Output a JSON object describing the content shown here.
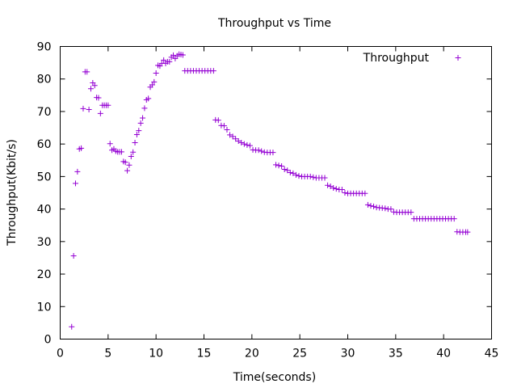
{
  "chart_data": {
    "type": "scatter",
    "title": "Throughput vs Time",
    "xlabel": "Time(seconds)",
    "ylabel": "Throughput(Kbit/s)",
    "xlim": [
      0,
      45
    ],
    "ylim": [
      0,
      90
    ],
    "xticks": [
      0,
      5,
      10,
      15,
      20,
      25,
      30,
      35,
      40,
      45
    ],
    "yticks": [
      0,
      10,
      20,
      30,
      40,
      50,
      60,
      70,
      80,
      90
    ],
    "grid": false,
    "legend_position": "top-right",
    "marker": "plus",
    "series": [
      {
        "name": "Throughput",
        "color": "#9400d3",
        "points": [
          [
            1.2,
            3.8
          ],
          [
            1.4,
            25.6
          ],
          [
            1.6,
            47.9
          ],
          [
            1.8,
            51.5
          ],
          [
            2.0,
            58.5
          ],
          [
            2.2,
            58.7
          ],
          [
            2.4,
            70.9
          ],
          [
            2.6,
            82.2
          ],
          [
            2.8,
            82.2
          ],
          [
            3.0,
            70.6
          ],
          [
            3.2,
            77.0
          ],
          [
            3.4,
            78.8
          ],
          [
            3.6,
            78.0
          ],
          [
            3.8,
            74.3
          ],
          [
            4.0,
            74.2
          ],
          [
            4.2,
            69.4
          ],
          [
            4.4,
            71.9
          ],
          [
            4.6,
            71.9
          ],
          [
            4.8,
            71.9
          ],
          [
            5.0,
            71.9
          ],
          [
            5.2,
            60.1
          ],
          [
            5.4,
            58.1
          ],
          [
            5.6,
            58.5
          ],
          [
            5.8,
            57.8
          ],
          [
            6.0,
            57.6
          ],
          [
            6.2,
            57.6
          ],
          [
            6.4,
            57.6
          ],
          [
            6.6,
            54.6
          ],
          [
            6.8,
            54.4
          ],
          [
            7.0,
            51.8
          ],
          [
            7.2,
            53.5
          ],
          [
            7.4,
            56.2
          ],
          [
            7.6,
            57.5
          ],
          [
            7.8,
            60.4
          ],
          [
            8.0,
            62.9
          ],
          [
            8.2,
            64.1
          ],
          [
            8.4,
            66.4
          ],
          [
            8.6,
            68.0
          ],
          [
            8.8,
            71.0
          ],
          [
            9.0,
            73.6
          ],
          [
            9.2,
            74.0
          ],
          [
            9.4,
            77.5
          ],
          [
            9.6,
            78.2
          ],
          [
            9.8,
            79.1
          ],
          [
            10.0,
            81.8
          ],
          [
            10.2,
            84.2
          ],
          [
            10.4,
            84.0
          ],
          [
            10.6,
            84.8
          ],
          [
            10.8,
            85.8
          ],
          [
            11.0,
            84.8
          ],
          [
            11.2,
            85.3
          ],
          [
            11.4,
            85.3
          ],
          [
            11.6,
            86.7
          ],
          [
            11.8,
            87.3
          ],
          [
            12.0,
            86.3
          ],
          [
            12.2,
            87.1
          ],
          [
            12.4,
            87.6
          ],
          [
            12.6,
            87.5
          ],
          [
            12.8,
            87.4
          ],
          [
            13.0,
            82.5
          ],
          [
            13.3,
            82.5
          ],
          [
            13.6,
            82.5
          ],
          [
            13.9,
            82.5
          ],
          [
            14.2,
            82.5
          ],
          [
            14.5,
            82.5
          ],
          [
            14.8,
            82.5
          ],
          [
            15.1,
            82.5
          ],
          [
            15.4,
            82.5
          ],
          [
            15.7,
            82.5
          ],
          [
            16.0,
            82.5
          ],
          [
            16.2,
            67.4
          ],
          [
            16.5,
            67.3
          ],
          [
            16.8,
            65.7
          ],
          [
            17.1,
            65.6
          ],
          [
            17.4,
            64.4
          ],
          [
            17.7,
            62.8
          ],
          [
            18.0,
            62.3
          ],
          [
            18.3,
            61.6
          ],
          [
            18.6,
            60.9
          ],
          [
            18.9,
            60.4
          ],
          [
            19.2,
            60.0
          ],
          [
            19.5,
            59.7
          ],
          [
            19.8,
            59.5
          ],
          [
            20.1,
            58.2
          ],
          [
            20.4,
            58.1
          ],
          [
            20.7,
            58.1
          ],
          [
            21.0,
            57.8
          ],
          [
            21.3,
            57.5
          ],
          [
            21.6,
            57.4
          ],
          [
            21.9,
            57.4
          ],
          [
            22.2,
            57.4
          ],
          [
            22.5,
            53.6
          ],
          [
            22.8,
            53.4
          ],
          [
            23.1,
            53.2
          ],
          [
            23.4,
            52.2
          ],
          [
            23.7,
            51.9
          ],
          [
            24.0,
            51.2
          ],
          [
            24.3,
            51.0
          ],
          [
            24.6,
            50.5
          ],
          [
            24.9,
            50.2
          ],
          [
            25.2,
            50.0
          ],
          [
            25.5,
            50.0
          ],
          [
            25.8,
            50.0
          ],
          [
            26.1,
            50.0
          ],
          [
            26.4,
            49.8
          ],
          [
            26.7,
            49.6
          ],
          [
            27.0,
            49.6
          ],
          [
            27.3,
            49.6
          ],
          [
            27.6,
            49.6
          ],
          [
            27.9,
            47.3
          ],
          [
            28.2,
            47.0
          ],
          [
            28.5,
            46.5
          ],
          [
            28.8,
            46.2
          ],
          [
            29.1,
            46.0
          ],
          [
            29.4,
            46.0
          ],
          [
            29.7,
            45.0
          ],
          [
            30.0,
            44.8
          ],
          [
            30.3,
            44.8
          ],
          [
            30.6,
            44.8
          ],
          [
            30.9,
            44.8
          ],
          [
            31.2,
            44.8
          ],
          [
            31.5,
            44.8
          ],
          [
            31.8,
            44.8
          ],
          [
            32.1,
            41.3
          ],
          [
            32.4,
            41.0
          ],
          [
            32.7,
            40.8
          ],
          [
            33.0,
            40.5
          ],
          [
            33.3,
            40.4
          ],
          [
            33.6,
            40.3
          ],
          [
            33.9,
            40.2
          ],
          [
            34.2,
            40.0
          ],
          [
            34.5,
            40.0
          ],
          [
            34.8,
            39.1
          ],
          [
            35.1,
            39.0
          ],
          [
            35.4,
            39.0
          ],
          [
            35.7,
            39.0
          ],
          [
            36.0,
            39.0
          ],
          [
            36.3,
            39.0
          ],
          [
            36.6,
            39.0
          ],
          [
            36.9,
            37.0
          ],
          [
            37.2,
            37.0
          ],
          [
            37.5,
            37.0
          ],
          [
            37.8,
            37.0
          ],
          [
            38.1,
            37.0
          ],
          [
            38.4,
            37.0
          ],
          [
            38.7,
            37.0
          ],
          [
            39.0,
            37.0
          ],
          [
            39.3,
            37.0
          ],
          [
            39.6,
            37.0
          ],
          [
            39.9,
            37.0
          ],
          [
            40.2,
            37.0
          ],
          [
            40.5,
            37.0
          ],
          [
            40.8,
            37.0
          ],
          [
            41.1,
            37.0
          ],
          [
            41.4,
            33.0
          ],
          [
            41.7,
            32.9
          ],
          [
            42.0,
            32.9
          ],
          [
            42.3,
            32.9
          ],
          [
            42.5,
            32.9
          ]
        ]
      }
    ]
  }
}
